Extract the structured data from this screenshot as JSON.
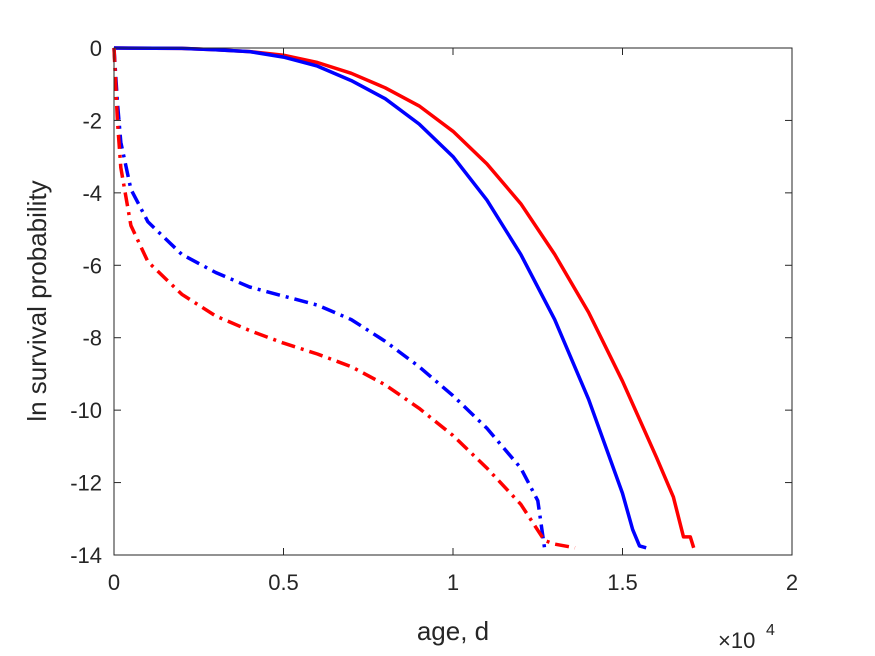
{
  "chart_data": {
    "type": "line",
    "xlabel": "age, d",
    "ylabel": "ln survival probability",
    "x_multiplier_base": "×10",
    "x_multiplier_exp": "4",
    "xlim": [
      0,
      2
    ],
    "ylim": [
      -14,
      0
    ],
    "xticks": [
      0,
      0.5,
      1,
      1.5,
      2
    ],
    "xtick_labels": [
      "0",
      "0.5",
      "1",
      "1.5",
      "2"
    ],
    "yticks": [
      0,
      -2,
      -4,
      -6,
      -8,
      -10,
      -12,
      -14
    ],
    "ytick_labels": [
      "0",
      "-2",
      "-4",
      "-6",
      "-8",
      "-10",
      "-12",
      "-14"
    ],
    "grid": false,
    "series": [
      {
        "color": "#ff0000",
        "style": "solid",
        "points": [
          [
            0,
            0
          ],
          [
            0.2,
            -0.01
          ],
          [
            0.3,
            -0.05
          ],
          [
            0.4,
            -0.1
          ],
          [
            0.5,
            -0.2
          ],
          [
            0.6,
            -0.4
          ],
          [
            0.7,
            -0.7
          ],
          [
            0.8,
            -1.1
          ],
          [
            0.9,
            -1.6
          ],
          [
            1.0,
            -2.3
          ],
          [
            1.1,
            -3.2
          ],
          [
            1.2,
            -4.3
          ],
          [
            1.3,
            -5.7
          ],
          [
            1.4,
            -7.3
          ],
          [
            1.5,
            -9.2
          ],
          [
            1.6,
            -11.3
          ],
          [
            1.65,
            -12.4
          ],
          [
            1.68,
            -13.5
          ],
          [
            1.7,
            -13.5
          ],
          [
            1.71,
            -13.8
          ]
        ]
      },
      {
        "color": "#0000ff",
        "style": "solid",
        "points": [
          [
            0,
            0
          ],
          [
            0.2,
            -0.01
          ],
          [
            0.3,
            -0.05
          ],
          [
            0.4,
            -0.1
          ],
          [
            0.5,
            -0.25
          ],
          [
            0.6,
            -0.5
          ],
          [
            0.7,
            -0.9
          ],
          [
            0.8,
            -1.4
          ],
          [
            0.9,
            -2.1
          ],
          [
            1.0,
            -3.0
          ],
          [
            1.1,
            -4.2
          ],
          [
            1.2,
            -5.7
          ],
          [
            1.3,
            -7.5
          ],
          [
            1.4,
            -9.7
          ],
          [
            1.5,
            -12.3
          ],
          [
            1.53,
            -13.3
          ],
          [
            1.55,
            -13.75
          ],
          [
            1.57,
            -13.8
          ]
        ]
      },
      {
        "color": "#0000ff",
        "style": "dashdot",
        "points": [
          [
            0,
            0
          ],
          [
            0.01,
            -1.5
          ],
          [
            0.02,
            -2.6
          ],
          [
            0.05,
            -3.9
          ],
          [
            0.1,
            -4.8
          ],
          [
            0.2,
            -5.7
          ],
          [
            0.3,
            -6.2
          ],
          [
            0.4,
            -6.6
          ],
          [
            0.5,
            -6.85
          ],
          [
            0.6,
            -7.1
          ],
          [
            0.7,
            -7.5
          ],
          [
            0.8,
            -8.1
          ],
          [
            0.9,
            -8.8
          ],
          [
            1.0,
            -9.6
          ],
          [
            1.1,
            -10.5
          ],
          [
            1.2,
            -11.6
          ],
          [
            1.25,
            -12.5
          ],
          [
            1.27,
            -13.8
          ]
        ]
      },
      {
        "color": "#ff0000",
        "style": "dashdot",
        "points": [
          [
            0,
            0
          ],
          [
            0.01,
            -2.0
          ],
          [
            0.02,
            -3.3
          ],
          [
            0.05,
            -4.9
          ],
          [
            0.1,
            -5.9
          ],
          [
            0.2,
            -6.8
          ],
          [
            0.3,
            -7.4
          ],
          [
            0.4,
            -7.8
          ],
          [
            0.5,
            -8.15
          ],
          [
            0.6,
            -8.45
          ],
          [
            0.7,
            -8.8
          ],
          [
            0.8,
            -9.3
          ],
          [
            0.9,
            -9.95
          ],
          [
            1.0,
            -10.7
          ],
          [
            1.1,
            -11.6
          ],
          [
            1.2,
            -12.6
          ],
          [
            1.27,
            -13.6
          ],
          [
            1.3,
            -13.7
          ],
          [
            1.36,
            -13.8
          ]
        ]
      }
    ]
  }
}
